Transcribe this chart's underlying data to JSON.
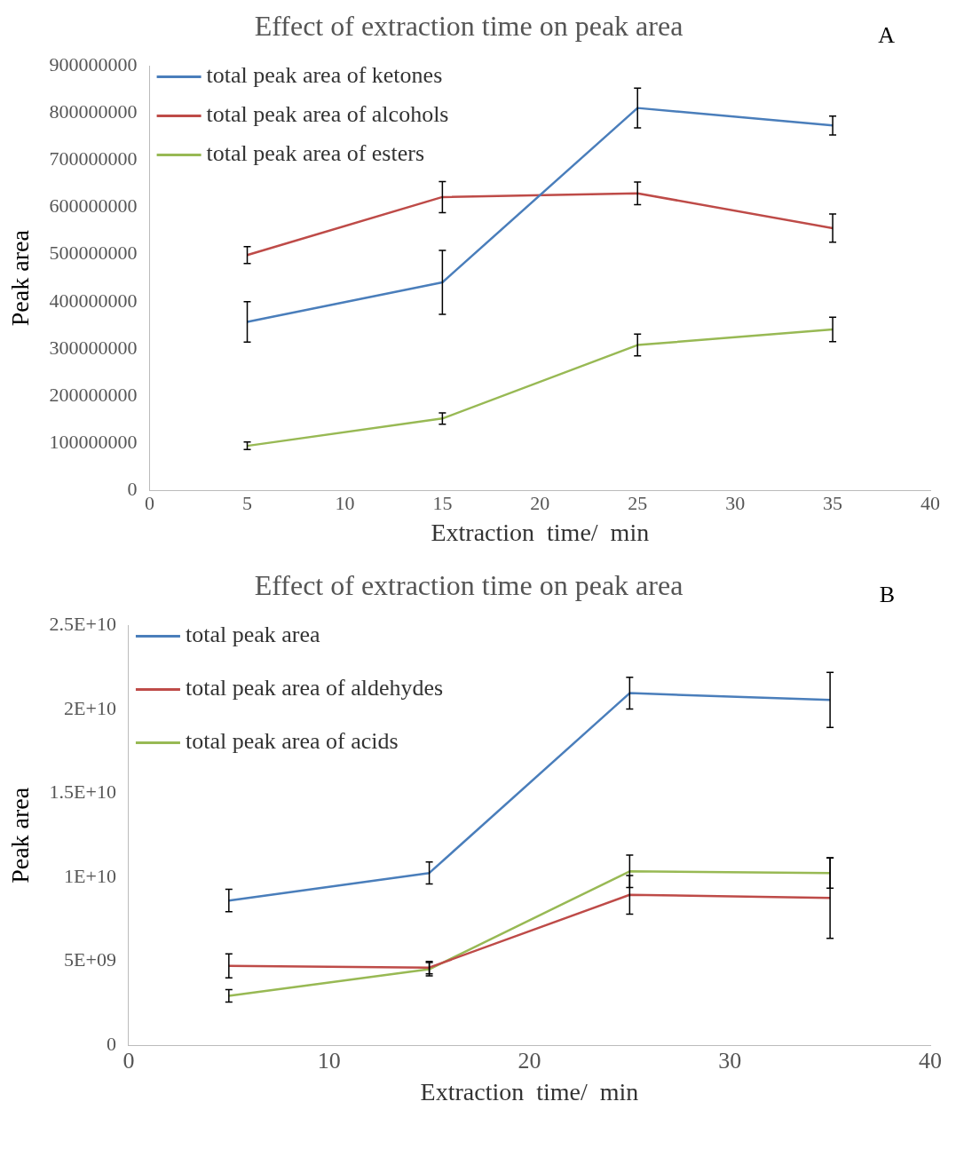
{
  "chart_data": [
    {
      "type": "line",
      "title": "Effect of extraction time on peak area",
      "xlabel": "Extraction  time/  min",
      "ylabel": "Peak area",
      "annotations": [
        "A"
      ],
      "x": [
        5,
        15,
        25,
        35
      ],
      "xlim": [
        0,
        40
      ],
      "xticks": [
        0,
        5,
        10,
        15,
        20,
        25,
        30,
        35,
        40
      ],
      "ylim": [
        0,
        900000000
      ],
      "yticks": [
        0,
        100000000,
        200000000,
        300000000,
        400000000,
        500000000,
        600000000,
        700000000,
        800000000,
        900000000
      ],
      "grid": false,
      "legend": "top left",
      "line_style": "solid",
      "series": [
        {
          "name": "total peak area of ketones",
          "color": "#4a7ebb",
          "values": [
            357000000,
            441000000,
            811000000,
            774000000
          ],
          "errors": [
            43000000,
            68000000,
            42000000,
            20000000
          ]
        },
        {
          "name": "total peak area of alcohols",
          "color": "#be4b48",
          "values": [
            499000000,
            622000000,
            630000000,
            556000000
          ],
          "errors": [
            18000000,
            33000000,
            24000000,
            30000000
          ]
        },
        {
          "name": "total peak area of esters",
          "color": "#98b954",
          "values": [
            94000000,
            152000000,
            308000000,
            341000000
          ],
          "errors": [
            8000000,
            12000000,
            23000000,
            26000000
          ]
        }
      ]
    },
    {
      "type": "line",
      "title": "Effect of extraction time on peak area",
      "xlabel": "Extraction  time/  min",
      "ylabel": "Peak area",
      "annotations": [
        "B"
      ],
      "x": [
        5,
        15,
        25,
        35
      ],
      "xlim": [
        0,
        40
      ],
      "xticks": [
        0,
        10,
        20,
        30,
        40
      ],
      "ylim": [
        0,
        25000000000
      ],
      "yticks": [
        0,
        {
          "value": 5000000000,
          "label": "5E+09"
        },
        {
          "value": 10000000000,
          "label": "1E+10"
        },
        {
          "value": 15000000000,
          "label": "1.5E+10"
        },
        {
          "value": 20000000000,
          "label": "2E+10"
        },
        {
          "value": 25000000000,
          "label": "2.5E+10"
        }
      ],
      "grid": false,
      "legend": "top left",
      "line_style": "solid",
      "series": [
        {
          "name": "total peak area",
          "color": "#4a7ebb",
          "values": [
            8620000000,
            10260000000,
            20970000000,
            20570000000
          ],
          "errors": [
            670000000,
            650000000,
            950000000,
            1640000000
          ]
        },
        {
          "name": "total peak area of aldehydes",
          "color": "#be4b48",
          "values": [
            4730000000,
            4630000000,
            8960000000,
            8770000000
          ],
          "errors": [
            720000000,
            370000000,
            1150000000,
            2400000000
          ]
        },
        {
          "name": "total peak area of acids",
          "color": "#98b954",
          "values": [
            2940000000,
            4530000000,
            10360000000,
            10260000000
          ],
          "errors": [
            370000000,
            400000000,
            970000000,
            900000000
          ]
        }
      ]
    }
  ]
}
